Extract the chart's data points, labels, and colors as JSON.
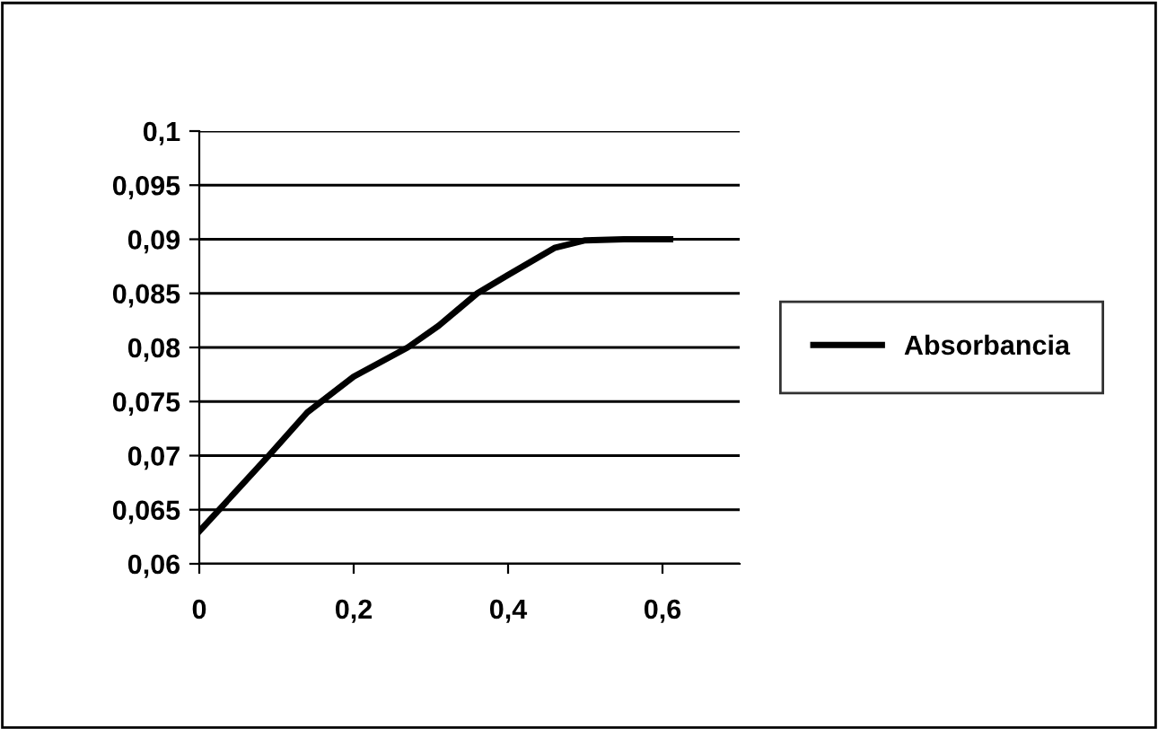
{
  "chart_data": {
    "type": "line",
    "x": [
      0,
      0.09,
      0.14,
      0.2,
      0.27,
      0.31,
      0.36,
      0.4,
      0.46,
      0.5,
      0.55,
      0.61
    ],
    "series": [
      {
        "name": "Absorbancia",
        "color": "#000000",
        "values": [
          0.063,
          0.07,
          0.074,
          0.0773,
          0.08,
          0.082,
          0.085,
          0.0867,
          0.0892,
          0.0899,
          0.09,
          0.09
        ]
      }
    ],
    "xlim": [
      0,
      0.7
    ],
    "xticks": [
      {
        "value": 0,
        "label": "0"
      },
      {
        "value": 0.2,
        "label": "0,2"
      },
      {
        "value": 0.4,
        "label": "0,4"
      },
      {
        "value": 0.6,
        "label": "0,6"
      }
    ],
    "ylim": [
      0.06,
      0.1
    ],
    "yticks": [
      {
        "value": 0.06,
        "label": "0,06"
      },
      {
        "value": 0.065,
        "label": "0,065"
      },
      {
        "value": 0.07,
        "label": "0,07"
      },
      {
        "value": 0.075,
        "label": "0,075"
      },
      {
        "value": 0.08,
        "label": "0,08"
      },
      {
        "value": 0.085,
        "label": "0,085"
      },
      {
        "value": 0.09,
        "label": "0,09"
      },
      {
        "value": 0.095,
        "label": "0,095"
      },
      {
        "value": 0.1,
        "label": "0,1"
      }
    ],
    "grid": "y",
    "legend": "right",
    "marker": "none",
    "line_style": "solid"
  }
}
